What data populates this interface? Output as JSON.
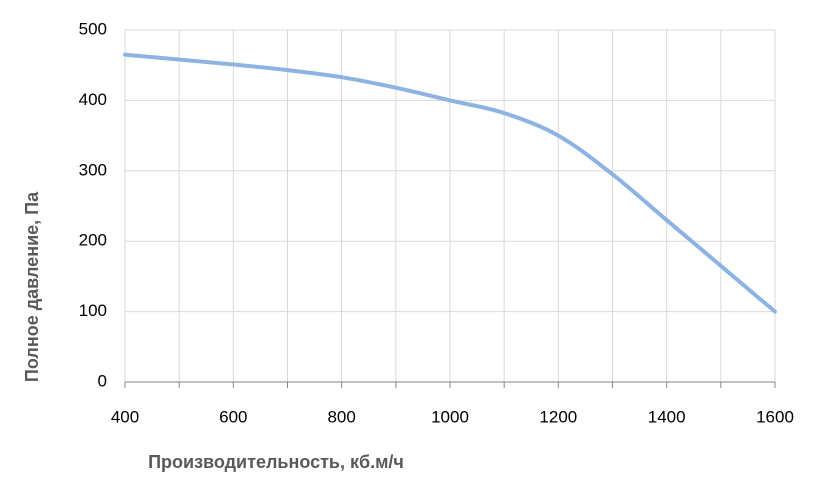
{
  "chart_data": {
    "type": "line",
    "x_label": "Производительность, кб.м/ч",
    "y_label": "Полное  давление, Па",
    "x": [
      400,
      500,
      600,
      700,
      800,
      900,
      1000,
      1100,
      1200,
      1300,
      1400,
      1500,
      1600
    ],
    "series": [
      {
        "color": "#8db3e2",
        "values": [
          465,
          458,
          451,
          443,
          433,
          418,
          400,
          382,
          350,
          295,
          230,
          165,
          100
        ]
      }
    ],
    "xlim": [
      400,
      1600
    ],
    "xticks": [
      400,
      600,
      800,
      1000,
      1200,
      1400,
      1600
    ],
    "x_minor_ticks": [
      500,
      700,
      900,
      1100,
      1300,
      1500
    ],
    "ylim": [
      0,
      500
    ],
    "yticks": [
      0,
      100,
      200,
      300,
      400,
      500
    ],
    "grid": true,
    "smooth": true
  }
}
